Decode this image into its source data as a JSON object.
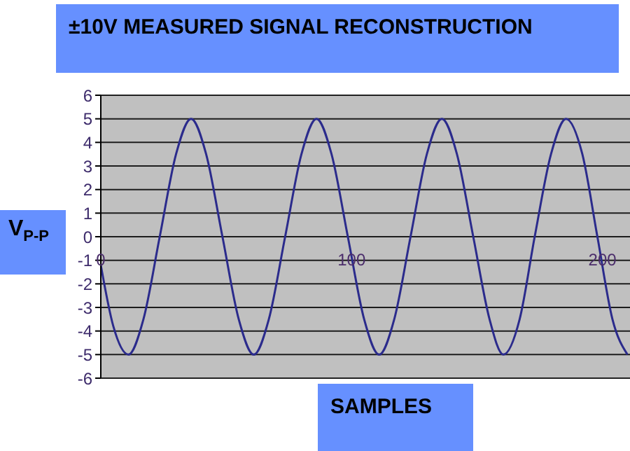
{
  "chart_data": {
    "type": "line",
    "title": "±10V MEASURED SIGNAL RECONSTRUCTION",
    "xlabel": "SAMPLES",
    "ylabel": "V$_{P-P}$",
    "xlim": [
      0,
      211
    ],
    "xticks": [
      0,
      100,
      200
    ],
    "ylim": [
      -6,
      6
    ],
    "yticks": [
      -6,
      -5,
      -4,
      -3,
      -2,
      -1,
      0,
      1,
      2,
      3,
      4,
      5,
      6
    ],
    "grid": "y",
    "marker": "none",
    "line_style": "solid",
    "series": [
      {
        "color": "#2b2b8c",
        "x": [
          0,
          5,
          11,
          17,
          23.5,
          30,
          36,
          42,
          48.5,
          55,
          61,
          67,
          73.5,
          80,
          86,
          92,
          98.5,
          105,
          111,
          117,
          123.5,
          130,
          136,
          142,
          148.5,
          155,
          160.5,
          167,
          173,
          179.5,
          185.5,
          192,
          198,
          204,
          210
        ],
        "values": [
          -1.2,
          -3.8,
          -5,
          -3.5,
          0,
          3.5,
          5,
          3.5,
          0,
          -3.5,
          -5,
          -3.5,
          0,
          3.5,
          5,
          3.5,
          0,
          -3.5,
          -5,
          -3.5,
          0,
          3.5,
          5,
          3.5,
          0,
          -3.5,
          -5,
          -3.5,
          0,
          3.5,
          5,
          3.5,
          0,
          -3.5,
          -5
        ]
      }
    ]
  }
}
